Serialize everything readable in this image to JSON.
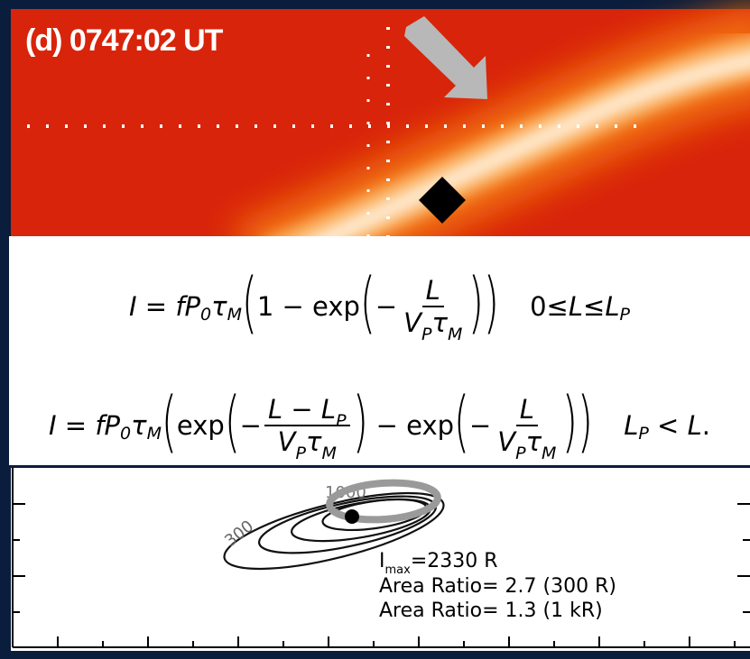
{
  "panel": {
    "label": "(d) 0747:02 UT"
  },
  "equations": [
    {
      "terms": [
        {
          "i": "I"
        },
        {
          "t": " = "
        },
        {
          "i": "fP"
        },
        {
          "sub": "0"
        },
        {
          "i": "τ"
        },
        {
          "sub": "M"
        },
        {
          "big": "("
        },
        {
          "t": "1 − exp"
        },
        {
          "big": "("
        },
        {
          "t": "−"
        },
        {
          "frac": {
            "num": [
              {
                "i": "L"
              }
            ],
            "den": [
              {
                "i": "V"
              },
              {
                "sub": "P"
              },
              {
                "i": "τ"
              },
              {
                "sub": "M"
              }
            ]
          }
        },
        {
          "big": ")"
        },
        {
          "big": ")"
        }
      ],
      "condition": [
        {
          "t": "0≤"
        },
        {
          "i": "L"
        },
        {
          "t": "≤"
        },
        {
          "i": "L"
        },
        {
          "sub": "P"
        }
      ]
    },
    {
      "terms": [
        {
          "i": "I"
        },
        {
          "t": " = "
        },
        {
          "i": "fP"
        },
        {
          "sub": "0"
        },
        {
          "i": "τ"
        },
        {
          "sub": "M"
        },
        {
          "big": "("
        },
        {
          "t": "exp"
        },
        {
          "big": "("
        },
        {
          "t": "−"
        },
        {
          "frac": {
            "num": [
              {
                "i": "L"
              },
              {
                "t": " − "
              },
              {
                "i": "L"
              },
              {
                "sub": "P"
              }
            ],
            "den": [
              {
                "i": "V"
              },
              {
                "sub": "P"
              },
              {
                "i": "τ"
              },
              {
                "sub": "M"
              }
            ]
          }
        },
        {
          "big": ")"
        },
        {
          "t": " − exp"
        },
        {
          "big": "("
        },
        {
          "t": "−"
        },
        {
          "frac": {
            "num": [
              {
                "i": "L"
              }
            ],
            "den": [
              {
                "i": "V"
              },
              {
                "sub": "P"
              },
              {
                "i": "τ"
              },
              {
                "sub": "M"
              }
            ]
          }
        },
        {
          "big": ")"
        },
        {
          "big": ")"
        }
      ],
      "condition": [
        {
          "i": "L"
        },
        {
          "sub": "P"
        },
        {
          "t": " < "
        },
        {
          "i": "L"
        },
        {
          "t": "."
        }
      ]
    }
  ],
  "plot": {
    "contour_labels": [
      "300",
      "1000"
    ],
    "stats": {
      "symbol": "I",
      "sub": "max",
      "text": "=2330 R",
      "lines": [
        "Area Ratio= 2.7 (300 R)",
        "Area Ratio= 1.3 (1 kR)"
      ]
    }
  }
}
